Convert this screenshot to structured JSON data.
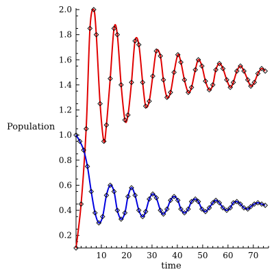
{
  "chart_data": {
    "type": "line",
    "xlabel": "time",
    "ylabel": "Population",
    "xlim": [
      0,
      76
    ],
    "ylim": [
      0.1,
      2.0
    ],
    "xticks": [
      10,
      20,
      30,
      40,
      50,
      60,
      70
    ],
    "yticks": [
      0.2,
      0.4,
      0.6,
      0.8,
      1.0,
      1.2,
      1.4,
      1.6,
      1.8,
      2.0
    ],
    "xtick_labels": [
      "10",
      "20",
      "30",
      "40",
      "50",
      "60",
      "70"
    ],
    "ytick_labels": [
      "0.2",
      "0.4",
      "0.6",
      "0.8",
      "1.0",
      "1.2",
      "1.4",
      "1.6",
      "1.8",
      "2.0"
    ],
    "grid": false,
    "series": [
      {
        "color": "#e00000",
        "x": [
          0,
          2,
          4,
          5.5,
          7,
          8,
          9.5,
          11,
          12,
          13.5,
          15,
          16.3,
          17.8,
          19.3,
          20.5,
          21.9,
          23.3,
          24.8,
          26.3,
          27.5,
          28.9,
          30.3,
          31.7,
          33.3,
          34.5,
          35.9,
          37.3,
          38.7,
          40.2,
          41.4,
          42.8,
          44.3,
          45.6,
          47.1,
          48.3,
          49.7,
          51.1,
          52.6,
          54.0,
          55.2,
          56.6,
          58.0,
          59.5,
          60.9,
          62.1,
          63.5,
          64.9,
          66.3,
          67.8,
          69.0,
          70.4,
          71.8,
          73.3,
          74.7
        ],
        "y": [
          0.1,
          0.45,
          1.05,
          1.85,
          2.0,
          1.8,
          1.25,
          0.95,
          1.08,
          1.45,
          1.85,
          1.8,
          1.4,
          1.12,
          1.16,
          1.42,
          1.75,
          1.72,
          1.42,
          1.23,
          1.27,
          1.47,
          1.67,
          1.63,
          1.44,
          1.3,
          1.34,
          1.5,
          1.64,
          1.58,
          1.44,
          1.34,
          1.38,
          1.52,
          1.6,
          1.55,
          1.43,
          1.36,
          1.4,
          1.52,
          1.57,
          1.53,
          1.44,
          1.38,
          1.42,
          1.51,
          1.55,
          1.51,
          1.44,
          1.39,
          1.42,
          1.49,
          1.53,
          1.51
        ]
      },
      {
        "color": "#0000e0",
        "x": [
          0,
          1.5,
          3,
          4.5,
          6,
          7.5,
          9,
          10.5,
          12,
          13.5,
          15,
          16.3,
          17.8,
          19.3,
          20.5,
          21.9,
          23.3,
          24.8,
          26.3,
          27.5,
          28.9,
          30.3,
          31.7,
          33.3,
          34.5,
          35.9,
          37.3,
          38.7,
          40.2,
          41.4,
          42.8,
          44.3,
          45.6,
          47.1,
          48.3,
          49.7,
          51.1,
          52.6,
          54.0,
          55.2,
          56.6,
          58.0,
          59.5,
          60.9,
          62.1,
          63.5,
          64.9,
          66.3,
          67.8,
          69.0,
          70.4,
          71.8,
          73.3,
          74.7
        ],
        "y": [
          1.0,
          0.95,
          0.88,
          0.75,
          0.55,
          0.38,
          0.3,
          0.35,
          0.52,
          0.6,
          0.55,
          0.4,
          0.33,
          0.38,
          0.51,
          0.58,
          0.52,
          0.4,
          0.35,
          0.39,
          0.49,
          0.53,
          0.5,
          0.4,
          0.37,
          0.41,
          0.48,
          0.51,
          0.48,
          0.41,
          0.38,
          0.41,
          0.47,
          0.49,
          0.47,
          0.41,
          0.39,
          0.42,
          0.46,
          0.48,
          0.46,
          0.42,
          0.4,
          0.42,
          0.46,
          0.47,
          0.45,
          0.42,
          0.41,
          0.43,
          0.45,
          0.46,
          0.45,
          0.44
        ]
      }
    ]
  }
}
